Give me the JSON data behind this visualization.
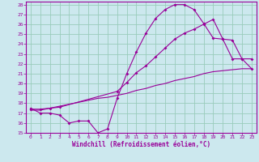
{
  "xlabel": "Windchill (Refroidissement éolien,°C)",
  "bg_color": "#cce8ee",
  "line_color": "#990099",
  "grid_color": "#99ccbb",
  "xlim": [
    -0.5,
    23.5
  ],
  "ylim": [
    15,
    28.3
  ],
  "xticks": [
    0,
    1,
    2,
    3,
    4,
    5,
    6,
    7,
    8,
    9,
    10,
    11,
    12,
    13,
    14,
    15,
    16,
    17,
    18,
    19,
    20,
    21,
    22,
    23
  ],
  "yticks": [
    15,
    16,
    17,
    18,
    19,
    20,
    21,
    22,
    23,
    24,
    25,
    26,
    27,
    28
  ],
  "line1_x": [
    0,
    1,
    2,
    3,
    4,
    5,
    6,
    7,
    8,
    9,
    10,
    11,
    12,
    13,
    14,
    15,
    16,
    17,
    18,
    19,
    20,
    21,
    22,
    23
  ],
  "line1_y": [
    17.5,
    17.0,
    17.0,
    16.8,
    16.0,
    16.2,
    16.2,
    15.0,
    15.4,
    18.5,
    21.0,
    23.2,
    25.1,
    26.6,
    27.5,
    28.0,
    28.0,
    27.5,
    26.1,
    24.6,
    24.5,
    22.5,
    22.5,
    21.5
  ],
  "line2_x": [
    0,
    1,
    2,
    3,
    4,
    5,
    6,
    7,
    8,
    9,
    10,
    11,
    12,
    13,
    14,
    15,
    16,
    17,
    18,
    19,
    20,
    21,
    22,
    23
  ],
  "line2_y": [
    17.3,
    17.3,
    17.5,
    17.7,
    17.9,
    18.1,
    18.3,
    18.5,
    18.6,
    18.8,
    19.0,
    19.3,
    19.5,
    19.8,
    20.0,
    20.3,
    20.5,
    20.7,
    21.0,
    21.2,
    21.3,
    21.4,
    21.5,
    21.5
  ],
  "line3_x": [
    0,
    1,
    2,
    3,
    9,
    10,
    11,
    12,
    13,
    14,
    15,
    16,
    17,
    18,
    19,
    20,
    21,
    22,
    23
  ],
  "line3_y": [
    17.4,
    17.4,
    17.5,
    17.6,
    19.2,
    20.1,
    21.1,
    21.8,
    22.7,
    23.6,
    24.5,
    25.1,
    25.5,
    26.0,
    26.5,
    24.5,
    24.4,
    22.5,
    22.5
  ]
}
